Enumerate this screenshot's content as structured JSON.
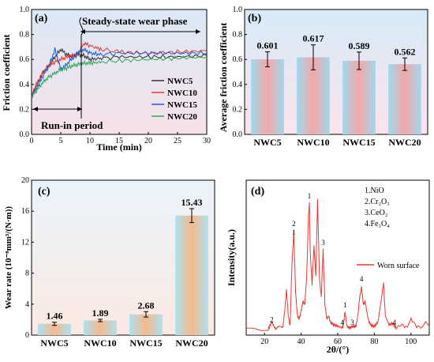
{
  "panels": {
    "a": {
      "tag": "(a)",
      "xlabel": "Time (min)",
      "ylabel": "Friction coefficient",
      "annotation_steady": "Steady-state wear phase",
      "annotation_runin": "Run-in period"
    },
    "b": {
      "tag": "(b)",
      "ylabel": "Average friction coefficient"
    },
    "c": {
      "tag": "(c)",
      "ylabel": "Wear rate (10⁻⁸mm³/(N·m))"
    },
    "d": {
      "tag": "(d)",
      "xlabel": "2θ/(°)",
      "ylabel": "Intensity(a.u.)",
      "phase_list": [
        "1.NiO",
        "2.Cr₂O₃",
        "3.CeO₂",
        "4.Fe₃O₄"
      ]
    }
  },
  "chart_data": [
    {
      "panel": "a",
      "type": "line",
      "xlim": [
        0,
        30
      ],
      "ylim": [
        0,
        1.0
      ],
      "xticks": [
        0,
        5,
        10,
        15,
        20,
        25,
        30
      ],
      "yticks": [
        0.0,
        0.2,
        0.4,
        0.6,
        0.8,
        1.0
      ],
      "legend_position": "lower-right",
      "series": [
        {
          "name": "NWC5",
          "color": "#333333",
          "x": [
            0,
            1,
            2,
            3,
            4,
            5,
            6,
            7,
            8,
            9,
            10,
            12,
            15,
            20,
            25,
            30
          ],
          "y": [
            0.3,
            0.4,
            0.5,
            0.55,
            0.62,
            0.68,
            0.64,
            0.62,
            0.64,
            0.63,
            0.6,
            0.61,
            0.62,
            0.62,
            0.62,
            0.63
          ]
        },
        {
          "name": "NWC10",
          "color": "#e53935",
          "x": [
            0,
            1,
            2,
            3,
            4,
            5,
            6,
            7,
            8,
            9,
            10,
            12,
            15,
            20,
            25,
            30
          ],
          "y": [
            0.32,
            0.42,
            0.5,
            0.55,
            0.58,
            0.6,
            0.62,
            0.63,
            0.65,
            0.73,
            0.71,
            0.68,
            0.66,
            0.65,
            0.66,
            0.67
          ]
        },
        {
          "name": "NWC15",
          "color": "#1e5bd6",
          "x": [
            0,
            1,
            2,
            3,
            4,
            5,
            6,
            7,
            8,
            9,
            10,
            12,
            15,
            20,
            25,
            30
          ],
          "y": [
            0.3,
            0.38,
            0.47,
            0.55,
            0.68,
            0.52,
            0.56,
            0.61,
            0.66,
            0.68,
            0.65,
            0.64,
            0.65,
            0.65,
            0.65,
            0.65
          ]
        },
        {
          "name": "NWC20",
          "color": "#2fa84f",
          "x": [
            0,
            1,
            2,
            3,
            4,
            5,
            6,
            7,
            8,
            9,
            10,
            12,
            15,
            20,
            25,
            30
          ],
          "y": [
            0.3,
            0.36,
            0.42,
            0.46,
            0.49,
            0.52,
            0.53,
            0.55,
            0.56,
            0.57,
            0.57,
            0.58,
            0.59,
            0.6,
            0.61,
            0.62
          ]
        }
      ]
    },
    {
      "panel": "b",
      "type": "bar",
      "categories": [
        "NWC5",
        "NWC10",
        "NWC15",
        "NWC20"
      ],
      "values": [
        0.601,
        0.617,
        0.589,
        0.562
      ],
      "labels": [
        "0.601",
        "0.617",
        "0.589",
        "0.562"
      ],
      "errors": [
        0.06,
        0.1,
        0.07,
        0.05
      ],
      "ylim": [
        0,
        1.0
      ],
      "yticks": [
        0.0,
        0.2,
        0.4,
        0.6,
        0.8,
        1.0
      ],
      "bar_colors": [
        "#f4a7a7",
        "#9fd9ee"
      ]
    },
    {
      "panel": "c",
      "type": "bar",
      "categories": [
        "NWC5",
        "NWC10",
        "NWC15",
        "NWC20"
      ],
      "values": [
        1.46,
        1.89,
        2.68,
        15.43
      ],
      "labels": [
        "1.46",
        "1.89",
        "2.68",
        "15.43"
      ],
      "errors": [
        0.2,
        0.15,
        0.35,
        0.9
      ],
      "ylim": [
        0,
        20
      ],
      "yticks": [
        0,
        4,
        8,
        12,
        16,
        20
      ],
      "bar_colors": [
        "#f6b98a",
        "#aee0f2"
      ]
    },
    {
      "panel": "d",
      "type": "line",
      "xlim": [
        10,
        110
      ],
      "ylim": [
        0,
        1.0
      ],
      "xticks": [
        20,
        40,
        60,
        80,
        100
      ],
      "legend_position": "right",
      "series": [
        {
          "name": "Worn surface",
          "color": "#e53935",
          "x": [
            10,
            14,
            18,
            22,
            24,
            26,
            28,
            30,
            31,
            32,
            33,
            34,
            35,
            36,
            37,
            38,
            39,
            40,
            41,
            42,
            43,
            44,
            44.5,
            45,
            46,
            47,
            48,
            49,
            50,
            51,
            52,
            53,
            54,
            55,
            56,
            58,
            60,
            62,
            63,
            64,
            65,
            66,
            67,
            68,
            70,
            71,
            72,
            73,
            74,
            75,
            76,
            77,
            78,
            80,
            82,
            84,
            85,
            86,
            88,
            90,
            92,
            95,
            98,
            100,
            103,
            106,
            108,
            110
          ],
          "y": [
            0.03,
            0.03,
            0.02,
            0.03,
            0.08,
            0.03,
            0.05,
            0.04,
            0.15,
            0.3,
            0.12,
            0.05,
            0.48,
            0.7,
            0.28,
            0.12,
            0.1,
            0.16,
            0.22,
            0.2,
            0.38,
            0.8,
            0.9,
            0.55,
            0.34,
            0.6,
            0.4,
            0.92,
            0.38,
            0.25,
            0.58,
            0.2,
            0.1,
            0.12,
            0.08,
            0.06,
            0.05,
            0.04,
            0.05,
            0.15,
            0.05,
            0.04,
            0.04,
            0.05,
            0.05,
            0.12,
            0.25,
            0.32,
            0.2,
            0.22,
            0.14,
            0.08,
            0.06,
            0.05,
            0.08,
            0.25,
            0.35,
            0.12,
            0.06,
            0.07,
            0.04,
            0.06,
            0.04,
            0.1,
            0.05,
            0.04,
            0.08,
            0.05
          ]
        }
      ],
      "peak_labels": [
        {
          "text": "2",
          "x": 24,
          "y": 0.08
        },
        {
          "text": "2",
          "x": 36,
          "y": 0.74
        },
        {
          "text": "1",
          "x": 36,
          "y": 0.68
        },
        {
          "text": "1",
          "x": 44.5,
          "y": 0.93
        },
        {
          "text": "3",
          "x": 52,
          "y": 0.61
        },
        {
          "text": "1",
          "x": 64,
          "y": 0.18
        },
        {
          "text": "4",
          "x": 62.5,
          "y": 0.06
        },
        {
          "text": "3",
          "x": 68,
          "y": 0.06
        },
        {
          "text": "4",
          "x": 73,
          "y": 0.36
        },
        {
          "text": "4",
          "x": 91,
          "y": 0.06
        }
      ]
    }
  ]
}
